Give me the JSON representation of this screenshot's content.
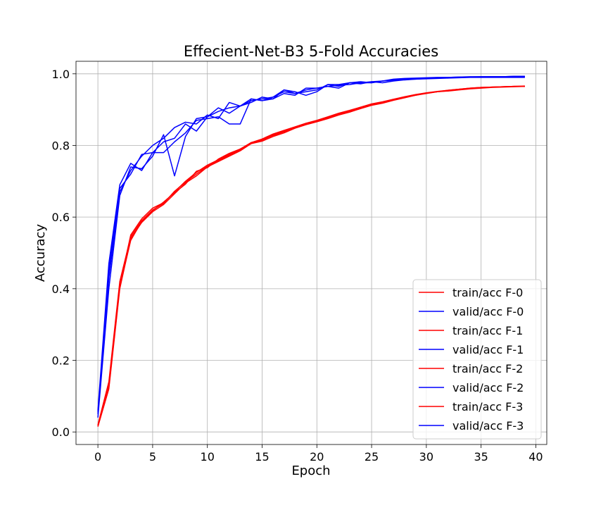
{
  "chart_data": {
    "type": "line",
    "title": "Effecient-Net-B3 5-Fold Accuracies",
    "xlabel": "Epoch",
    "ylabel": "Accuracy",
    "xlim": [
      -2,
      41
    ],
    "ylim": [
      -0.035,
      1.035
    ],
    "xticks": [
      0,
      5,
      10,
      15,
      20,
      25,
      30,
      35,
      40
    ],
    "yticks": [
      0.0,
      0.2,
      0.4,
      0.6,
      0.8,
      1.0
    ],
    "xtick_labels": [
      "0",
      "5",
      "10",
      "15",
      "20",
      "25",
      "30",
      "35",
      "40"
    ],
    "ytick_labels": [
      "0.0",
      "0.2",
      "0.4",
      "0.6",
      "0.8",
      "1.0"
    ],
    "grid": true,
    "legend_position": "bottom-right",
    "colors": {
      "train": "#ff0000",
      "valid": "#0000ff"
    },
    "x": [
      0,
      1,
      2,
      3,
      4,
      5,
      6,
      7,
      8,
      9,
      10,
      11,
      12,
      13,
      14,
      15,
      16,
      17,
      18,
      19,
      20,
      21,
      22,
      23,
      24,
      25,
      26,
      27,
      28,
      29,
      30,
      31,
      32,
      33,
      34,
      35,
      36,
      37,
      38,
      39
    ],
    "series": [
      {
        "name": "train/acc F-0",
        "color": "#ff0000",
        "values": [
          0.015,
          0.12,
          0.4,
          0.54,
          0.585,
          0.615,
          0.635,
          0.665,
          0.695,
          0.715,
          0.74,
          0.755,
          0.77,
          0.785,
          0.805,
          0.815,
          0.83,
          0.84,
          0.85,
          0.86,
          0.868,
          0.878,
          0.888,
          0.895,
          0.905,
          0.915,
          0.92,
          0.928,
          0.935,
          0.94,
          0.945,
          0.95,
          0.952,
          0.955,
          0.958,
          0.96,
          0.962,
          0.963,
          0.964,
          0.965
        ]
      },
      {
        "name": "valid/acc F-0",
        "color": "#0000ff",
        "values": [
          0.05,
          0.45,
          0.68,
          0.72,
          0.775,
          0.78,
          0.78,
          0.81,
          0.835,
          0.87,
          0.875,
          0.88,
          0.86,
          0.86,
          0.93,
          0.925,
          0.93,
          0.955,
          0.945,
          0.95,
          0.955,
          0.97,
          0.97,
          0.975,
          0.978,
          0.975,
          0.98,
          0.982,
          0.985,
          0.985,
          0.986,
          0.987,
          0.988,
          0.989,
          0.99,
          0.99,
          0.99,
          0.99,
          0.99,
          0.99
        ]
      },
      {
        "name": "train/acc F-1",
        "color": "#ff0000",
        "values": [
          0.015,
          0.13,
          0.41,
          0.55,
          0.595,
          0.625,
          0.64,
          0.67,
          0.7,
          0.725,
          0.745,
          0.76,
          0.775,
          0.79,
          0.805,
          0.812,
          0.825,
          0.835,
          0.848,
          0.858,
          0.866,
          0.875,
          0.885,
          0.893,
          0.903,
          0.912,
          0.918,
          0.926,
          0.933,
          0.94,
          0.946,
          0.95,
          0.953,
          0.956,
          0.959,
          0.961,
          0.963,
          0.964,
          0.965,
          0.965
        ]
      },
      {
        "name": "valid/acc F-1",
        "color": "#0000ff",
        "values": [
          0.04,
          0.4,
          0.66,
          0.74,
          0.735,
          0.77,
          0.83,
          0.715,
          0.825,
          0.875,
          0.88,
          0.905,
          0.89,
          0.91,
          0.925,
          0.93,
          0.935,
          0.95,
          0.945,
          0.955,
          0.96,
          0.965,
          0.96,
          0.975,
          0.972,
          0.978,
          0.975,
          0.98,
          0.983,
          0.985,
          0.987,
          0.988,
          0.989,
          0.99,
          0.991,
          0.991,
          0.992,
          0.992,
          0.992,
          0.992
        ]
      },
      {
        "name": "train/acc F-2",
        "color": "#ff0000",
        "values": [
          0.02,
          0.14,
          0.42,
          0.545,
          0.59,
          0.62,
          0.638,
          0.672,
          0.698,
          0.72,
          0.742,
          0.758,
          0.772,
          0.788,
          0.808,
          0.818,
          0.832,
          0.842,
          0.852,
          0.862,
          0.87,
          0.88,
          0.89,
          0.898,
          0.907,
          0.916,
          0.922,
          0.929,
          0.936,
          0.942,
          0.947,
          0.951,
          0.954,
          0.957,
          0.96,
          0.962,
          0.963,
          0.964,
          0.965,
          0.966
        ]
      },
      {
        "name": "valid/acc F-2",
        "color": "#0000ff",
        "values": [
          0.06,
          0.47,
          0.69,
          0.75,
          0.73,
          0.78,
          0.81,
          0.82,
          0.86,
          0.84,
          0.88,
          0.895,
          0.905,
          0.91,
          0.92,
          0.935,
          0.93,
          0.945,
          0.94,
          0.96,
          0.96,
          0.965,
          0.968,
          0.97,
          0.975,
          0.978,
          0.98,
          0.983,
          0.985,
          0.987,
          0.988,
          0.989,
          0.99,
          0.991,
          0.991,
          0.992,
          0.992,
          0.992,
          0.993,
          0.993
        ]
      },
      {
        "name": "train/acc F-3",
        "color": "#ff0000",
        "values": [
          0.018,
          0.125,
          0.405,
          0.535,
          0.588,
          0.618,
          0.642,
          0.668,
          0.692,
          0.728,
          0.738,
          0.762,
          0.778,
          0.79,
          0.808,
          0.815,
          0.828,
          0.838,
          0.85,
          0.86,
          0.868,
          0.877,
          0.886,
          0.894,
          0.904,
          0.913,
          0.919,
          0.927,
          0.934,
          0.941,
          0.946,
          0.95,
          0.954,
          0.957,
          0.96,
          0.962,
          0.963,
          0.964,
          0.965,
          0.965
        ]
      },
      {
        "name": "valid/acc F-3",
        "color": "#0000ff",
        "values": [
          0.055,
          0.43,
          0.67,
          0.73,
          0.77,
          0.8,
          0.82,
          0.85,
          0.865,
          0.86,
          0.885,
          0.875,
          0.92,
          0.91,
          0.93,
          0.925,
          0.935,
          0.955,
          0.95,
          0.94,
          0.95,
          0.97,
          0.965,
          0.975,
          0.975,
          0.975,
          0.98,
          0.985,
          0.987,
          0.988,
          0.989,
          0.99,
          0.99,
          0.991,
          0.992,
          0.992,
          0.992,
          0.992,
          0.993,
          0.993
        ]
      }
    ]
  }
}
